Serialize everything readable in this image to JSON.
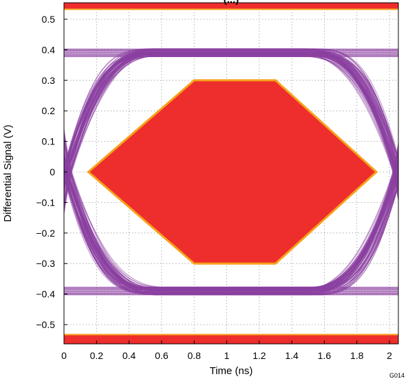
{
  "chart_data": {
    "type": "line",
    "title": "(...) ",
    "xlabel": "Time (ns)",
    "ylabel": "Differential Signal (V)",
    "figure_code": "G014",
    "xlim": [
      0,
      2.1
    ],
    "ylim": [
      -0.55,
      0.55
    ],
    "x_ticks": [
      0,
      0.2,
      0.4,
      0.6,
      0.8,
      1,
      1.2,
      1.4,
      1.6,
      1.8,
      2
    ],
    "x_tick_labels": [
      "0",
      "0.2",
      "0.4",
      "0.6",
      "0.8",
      "1",
      "1.2",
      "1.4",
      "1.6",
      "1.8",
      "2"
    ],
    "y_ticks": [
      0.5,
      0.4,
      0.3,
      0.2,
      0.1,
      0,
      -0.1,
      -0.2,
      -0.3,
      -0.4,
      -0.5
    ],
    "y_tick_labels": [
      "0.5",
      "0.4",
      "0.3",
      "0.2",
      "0.1",
      "0",
      "−0.1",
      "−0.2",
      "−0.3",
      "−0.4",
      "−0.5"
    ],
    "grid": true,
    "eye_mask": {
      "x": [
        0.15,
        0.8,
        1.3,
        1.92,
        1.3,
        0.8,
        0.15
      ],
      "y": [
        0,
        0.3,
        0.3,
        0,
        -0.3,
        -0.3,
        0
      ]
    },
    "limit_lines": [
      0.535,
      -0.535
    ],
    "eye_traces": {
      "high_level": 0.39,
      "low_level": -0.39,
      "crossings": [
        0.02,
        2.05
      ],
      "color": "#8B3FA0"
    },
    "colors": {
      "mask_fill": "#EE2D2D",
      "mask_edge": "#F7A11A",
      "trace": "#8B3FA0",
      "limit_fill": "#EE2D2D",
      "grid": "#9a9a9a"
    }
  }
}
